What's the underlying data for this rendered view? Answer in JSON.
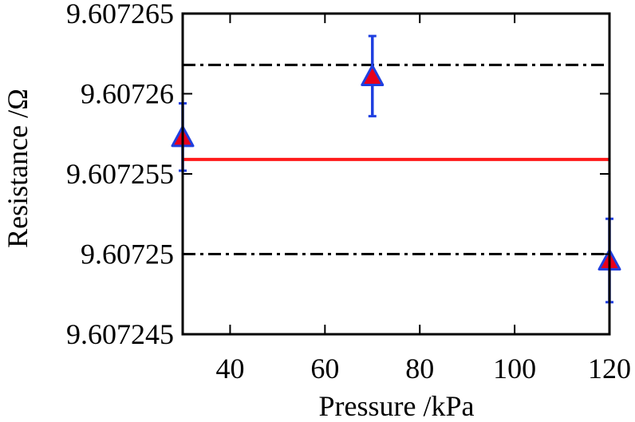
{
  "chart_data": {
    "type": "scatter",
    "xlabel": "Pressure /kPa",
    "ylabel": "Resistance /Ω",
    "xlim": [
      30,
      120
    ],
    "ylim": [
      9.607245,
      9.607265
    ],
    "xticks": [
      40,
      60,
      80,
      100,
      120
    ],
    "xtick_labels": [
      "40",
      "60",
      "80",
      "100",
      "120"
    ],
    "yticks": [
      9.607245,
      9.60725,
      9.607255,
      9.60726,
      9.607265
    ],
    "ytick_labels": [
      "9.607245",
      "9.60725",
      "9.607255",
      "9.60726",
      "9.607265"
    ],
    "grid": false,
    "series": [
      {
        "marker": "triangle",
        "marker_color": "#e8001c",
        "error_color": "#1f3fe0",
        "x": [
          30,
          70,
          120
        ],
        "y": [
          9.6072573,
          9.6072611,
          9.6072496
        ],
        "yerr": [
          2.1e-06,
          2.5e-06,
          2.6e-06
        ]
      }
    ],
    "reference_lines": [
      {
        "style": "solid",
        "color": "#ff1a1a",
        "y": 9.6072559
      },
      {
        "style": "dash-dot",
        "color": "#000000",
        "y": 9.6072618
      },
      {
        "style": "dash-dot",
        "color": "#000000",
        "y": 9.60725
      }
    ]
  }
}
